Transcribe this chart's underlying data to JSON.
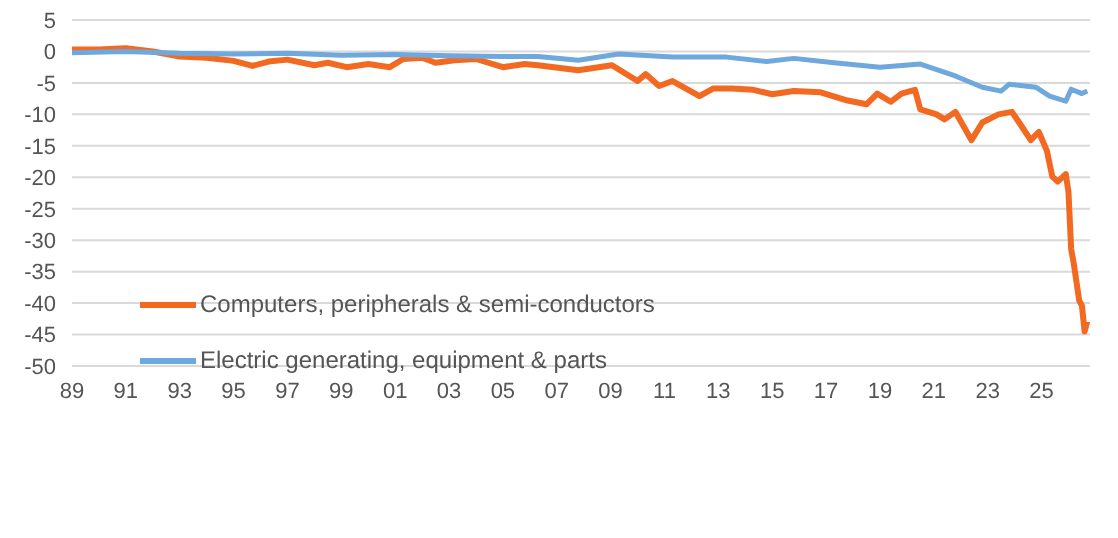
{
  "chart_data": {
    "type": "line",
    "xlim": [
      1989,
      2026.8
    ],
    "xticks": [
      {
        "value": 1989,
        "label": "89"
      },
      {
        "value": 1991,
        "label": "91"
      },
      {
        "value": 1993,
        "label": "93"
      },
      {
        "value": 1995,
        "label": "95"
      },
      {
        "value": 1997,
        "label": "97"
      },
      {
        "value": 1999,
        "label": "99"
      },
      {
        "value": 2001,
        "label": "01"
      },
      {
        "value": 2003,
        "label": "03"
      },
      {
        "value": 2005,
        "label": "05"
      },
      {
        "value": 2007,
        "label": "07"
      },
      {
        "value": 2009,
        "label": "09"
      },
      {
        "value": 2011,
        "label": "11"
      },
      {
        "value": 2013,
        "label": "13"
      },
      {
        "value": 2015,
        "label": "15"
      },
      {
        "value": 2017,
        "label": "17"
      },
      {
        "value": 2019,
        "label": "19"
      },
      {
        "value": 2021,
        "label": "21"
      },
      {
        "value": 2023,
        "label": "23"
      },
      {
        "value": 2025,
        "label": "25"
      }
    ],
    "ylim": [
      -50,
      5
    ],
    "yticks": [
      5,
      0,
      -5,
      -10,
      -15,
      -20,
      -25,
      -30,
      -35,
      -40,
      -45,
      -50
    ],
    "grid": "y",
    "legend": "left",
    "marker": "none",
    "line_style": "solid",
    "series": [
      {
        "name": "Computers, peripherals & semi-conductors",
        "color": "#f26a21",
        "x": [
          1989,
          1990,
          1991,
          1992,
          1993,
          1994,
          1995,
          1995.7,
          1996.3,
          1997,
          1998,
          1998.5,
          1999.2,
          2000,
          2000.8,
          2001.3,
          2002,
          2002.5,
          2003.2,
          2004,
          2005,
          2005.8,
          2006.3,
          2007.8,
          2009.05,
          2010,
          2010.3,
          2010.8,
          2011.3,
          2012.3,
          2012.8,
          2013.5,
          2014.3,
          2015,
          2015.8,
          2016.8,
          2017.8,
          2018.5,
          2018.9,
          2019.4,
          2019.8,
          2020.3,
          2020.5,
          2021.1,
          2021.4,
          2021.8,
          2022.4,
          2022.8,
          2023.4,
          2023.9,
          2024.2,
          2024.6,
          2024.9,
          2025.2,
          2025.4,
          2025.6,
          2025.9,
          2026,
          2026.1,
          2026.2,
          2026.4,
          2026.5,
          2026.6,
          2026.7
        ],
        "values": [
          0.3,
          0.3,
          0.5,
          0,
          -0.8,
          -1,
          -1.5,
          -2.3,
          -1.6,
          -1.3,
          -2.2,
          -1.8,
          -2.5,
          -2,
          -2.5,
          -1.2,
          -1,
          -1.8,
          -1.4,
          -1.2,
          -2.5,
          -2,
          -2.2,
          -3,
          -2.2,
          -4.7,
          -3.6,
          -5.5,
          -4.7,
          -7.1,
          -5.9,
          -5.9,
          -6.1,
          -6.8,
          -6.3,
          -6.5,
          -7.8,
          -8.4,
          -6.7,
          -8,
          -6.7,
          -6.1,
          -9.2,
          -10,
          -10.8,
          -9.6,
          -14.1,
          -11.3,
          -10,
          -9.6,
          -11.5,
          -14.1,
          -12.8,
          -15.8,
          -19.9,
          -20.7,
          -19.5,
          -22.3,
          -31.4,
          -33.8,
          -39.6,
          -40.4,
          -44.5,
          -42.9
        ]
      },
      {
        "name": "Electric generating, equipment & parts",
        "color": "#6fa8dc",
        "x": [
          1989,
          1991,
          1993,
          1995,
          1997,
          1999,
          2001,
          2003,
          2005,
          2006.3,
          2007.8,
          2009.3,
          2011.3,
          2013.3,
          2014.8,
          2015.8,
          2017.3,
          2019,
          2020.5,
          2021.8,
          2022.8,
          2023.5,
          2023.8,
          2024.8,
          2025.3,
          2025.9,
          2026.1,
          2026.5,
          2026.7
        ],
        "values": [
          -0.2,
          0,
          -0.3,
          -0.4,
          -0.3,
          -0.6,
          -0.5,
          -0.7,
          -0.8,
          -0.8,
          -1.4,
          -0.4,
          -0.9,
          -0.9,
          -1.6,
          -1.1,
          -1.8,
          -2.5,
          -2,
          -3.9,
          -5.7,
          -6.3,
          -5.2,
          -5.7,
          -7.1,
          -7.9,
          -6,
          -6.7,
          -6.3
        ]
      }
    ]
  }
}
